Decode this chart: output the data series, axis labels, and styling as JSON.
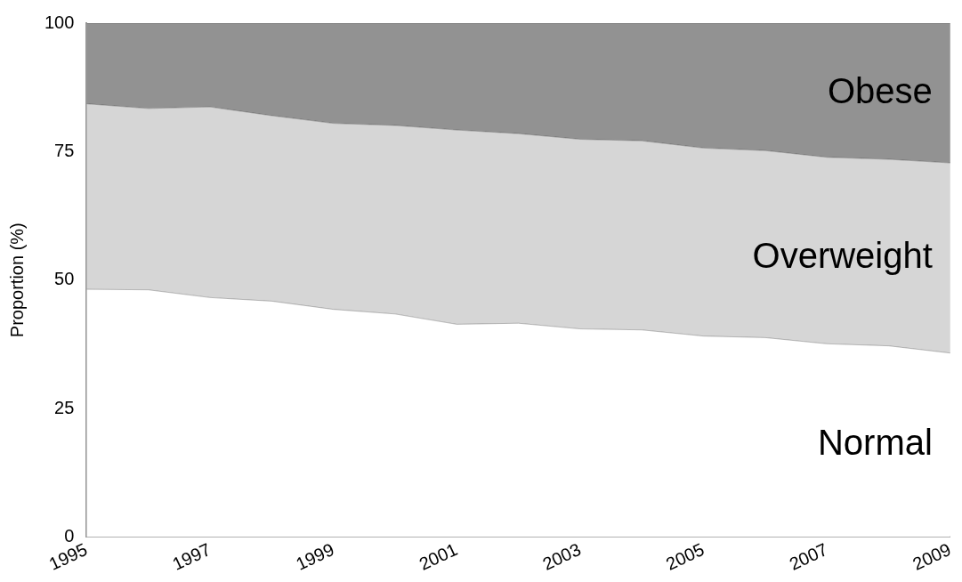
{
  "chart_data": {
    "type": "area",
    "stacked": true,
    "ylabel": "Proportion (%)",
    "x": [
      1995,
      1996,
      1997,
      1998,
      1999,
      2000,
      2001,
      2002,
      2003,
      2004,
      2005,
      2006,
      2007,
      2008,
      2009
    ],
    "xlim": [
      1995,
      2009
    ],
    "xticks": [
      1995,
      1997,
      1999,
      2001,
      2003,
      2005,
      2007,
      2009
    ],
    "ylim": [
      0,
      100
    ],
    "yticks": [
      0,
      25,
      50,
      75,
      100
    ],
    "series": [
      {
        "name": "Normal",
        "color": "#ffffff",
        "values": [
          48.2,
          48.1,
          46.6,
          45.9,
          44.3,
          43.4,
          41.4,
          41.6,
          40.5,
          40.3,
          39.1,
          38.8,
          37.6,
          37.2,
          35.8
        ]
      },
      {
        "name": "Overweight",
        "color": "#d6d6d6",
        "values": [
          36.1,
          35.3,
          37.1,
          36.1,
          36.2,
          36.7,
          37.8,
          36.9,
          36.9,
          36.8,
          36.6,
          36.4,
          36.3,
          36.3,
          37.0
        ]
      },
      {
        "name": "Obese",
        "color": "#929292",
        "values": [
          15.7,
          16.6,
          16.3,
          18.0,
          19.5,
          19.9,
          20.8,
          21.5,
          22.6,
          22.9,
          24.3,
          24.8,
          26.1,
          26.5,
          27.2
        ]
      }
    ]
  }
}
